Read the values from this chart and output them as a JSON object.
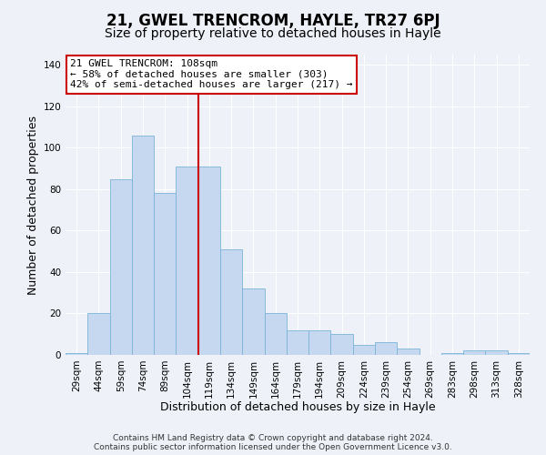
{
  "title": "21, GWEL TRENCROM, HAYLE, TR27 6PJ",
  "subtitle": "Size of property relative to detached houses in Hayle",
  "xlabel": "Distribution of detached houses by size in Hayle",
  "ylabel": "Number of detached properties",
  "bar_labels": [
    "29sqm",
    "44sqm",
    "59sqm",
    "74sqm",
    "89sqm",
    "104sqm",
    "119sqm",
    "134sqm",
    "149sqm",
    "164sqm",
    "179sqm",
    "194sqm",
    "209sqm",
    "224sqm",
    "239sqm",
    "254sqm",
    "269sqm",
    "283sqm",
    "298sqm",
    "313sqm",
    "328sqm"
  ],
  "bar_values": [
    1,
    20,
    85,
    106,
    78,
    91,
    91,
    51,
    32,
    20,
    12,
    12,
    10,
    5,
    6,
    3,
    0,
    1,
    2,
    2,
    1
  ],
  "bar_color": "#c5d8f0",
  "bar_edge_color": "#7ab3d8",
  "vline_x": 5.5,
  "vline_color": "#cc0000",
  "annotation_title": "21 GWEL TRENCROM: 108sqm",
  "annotation_line1": "← 58% of detached houses are smaller (303)",
  "annotation_line2": "42% of semi-detached houses are larger (217) →",
  "annotation_box_color": "#ffffff",
  "annotation_box_edge": "#cc0000",
  "ylim": [
    0,
    145
  ],
  "yticks": [
    0,
    20,
    40,
    60,
    80,
    100,
    120,
    140
  ],
  "footnote1": "Contains HM Land Registry data © Crown copyright and database right 2024.",
  "footnote2": "Contains public sector information licensed under the Open Government Licence v3.0.",
  "background_color": "#eef2f8",
  "grid_color": "#ffffff",
  "title_fontsize": 12,
  "subtitle_fontsize": 10,
  "axis_label_fontsize": 9,
  "tick_fontsize": 7.5,
  "annotation_fontsize": 8,
  "footnote_fontsize": 6.5
}
